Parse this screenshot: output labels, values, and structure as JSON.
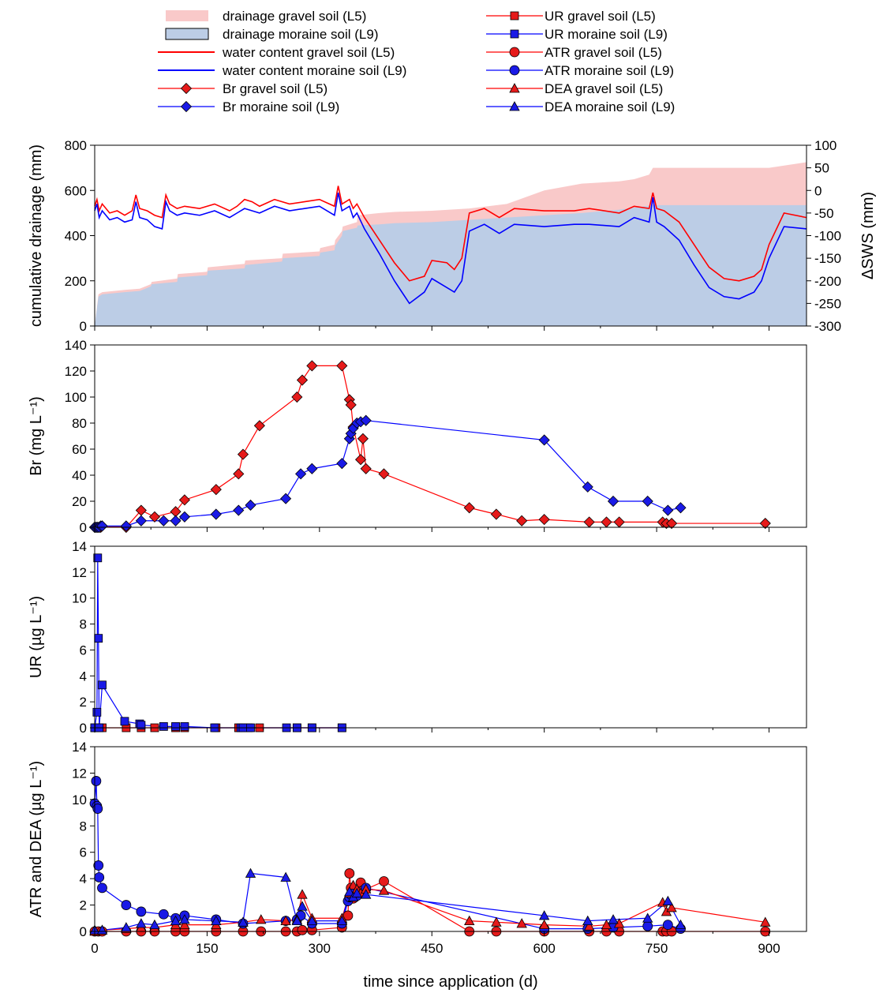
{
  "colors": {
    "gravel": "#ff0000",
    "moraine": "#0000ff",
    "gravel_fill": "#f9c9c9",
    "moraine_fill": "#bccde6",
    "gravel_marker": "#e61a1a",
    "moraine_marker": "#1a1ae6"
  },
  "legend": {
    "left": [
      {
        "label": "drainage gravel soil (L5)",
        "kind": "fill-gravel"
      },
      {
        "label": "drainage moraine soil (L9)",
        "kind": "fill-moraine"
      },
      {
        "label": "water content gravel soil (L5)",
        "kind": "line-gravel"
      },
      {
        "label": "water content moraine soil (L9)",
        "kind": "line-moraine"
      },
      {
        "label": "Br gravel soil (L5)",
        "kind": "diamond-gravel"
      },
      {
        "label": "Br moraine soil (L9)",
        "kind": "diamond-moraine"
      }
    ],
    "right": [
      {
        "label": "UR gravel soil (L5)",
        "kind": "square-gravel"
      },
      {
        "label": "UR moraine soil (L9)",
        "kind": "square-moraine"
      },
      {
        "label": "ATR gravel soil (L5)",
        "kind": "circle-gravel"
      },
      {
        "label": "ATR moraine soil (L9)",
        "kind": "circle-moraine"
      },
      {
        "label": "DEA gravel soil (L5)",
        "kind": "triangle-gravel"
      },
      {
        "label": "DEA moraine soil (L9)",
        "kind": "triangle-moraine"
      }
    ]
  },
  "chart_data": [
    {
      "type": "area",
      "ylabel": "cumulative drainage (mm)",
      "y2label": "ΔSWS (mm)",
      "ylim": [
        0,
        800
      ],
      "y2lim": [
        -300,
        100
      ],
      "yticks": [
        0,
        200,
        400,
        600,
        800
      ],
      "y2ticks": [
        -300,
        -250,
        -200,
        -150,
        -100,
        -50,
        0,
        50,
        100
      ],
      "series": [
        {
          "name": "drainage gravel soil (L5)",
          "type": "area",
          "x": [
            0,
            5,
            10,
            40,
            60,
            75,
            76,
            110,
            111,
            150,
            151,
            200,
            201,
            250,
            251,
            300,
            301,
            320,
            321,
            330,
            331,
            350,
            351,
            380,
            400,
            450,
            500,
            550,
            600,
            650,
            700,
            720,
            740,
            745,
            800,
            900,
            950
          ],
          "y": [
            0,
            140,
            150,
            160,
            165,
            185,
            195,
            210,
            230,
            240,
            260,
            275,
            290,
            300,
            320,
            330,
            345,
            360,
            380,
            420,
            440,
            460,
            490,
            500,
            505,
            510,
            520,
            540,
            600,
            630,
            640,
            650,
            670,
            700,
            700,
            700,
            725
          ]
        },
        {
          "name": "drainage moraine soil (L9)",
          "type": "area",
          "x": [
            0,
            5,
            10,
            40,
            60,
            75,
            76,
            110,
            111,
            150,
            151,
            200,
            201,
            250,
            251,
            300,
            301,
            320,
            321,
            330,
            331,
            350,
            351,
            380,
            400,
            450,
            500,
            550,
            600,
            650,
            700,
            745,
            800,
            950
          ],
          "y": [
            0,
            130,
            140,
            150,
            155,
            175,
            185,
            195,
            215,
            225,
            245,
            255,
            270,
            285,
            300,
            310,
            325,
            335,
            355,
            400,
            420,
            435,
            445,
            450,
            455,
            460,
            470,
            480,
            490,
            500,
            515,
            535,
            535,
            535
          ]
        },
        {
          "name": "water content gravel soil (L5)",
          "type": "line",
          "axis": "right",
          "x": [
            0,
            3,
            6,
            10,
            20,
            30,
            40,
            50,
            55,
            60,
            70,
            80,
            90,
            95,
            100,
            110,
            120,
            140,
            160,
            180,
            190,
            200,
            210,
            220,
            240,
            260,
            280,
            300,
            320,
            325,
            330,
            340,
            345,
            350,
            360,
            380,
            400,
            420,
            440,
            450,
            470,
            480,
            490,
            500,
            520,
            540,
            560,
            600,
            640,
            660,
            700,
            720,
            740,
            745,
            750,
            760,
            780,
            800,
            820,
            840,
            860,
            880,
            890,
            900,
            920,
            950
          ],
          "y": [
            -35,
            -20,
            -45,
            -30,
            -50,
            -45,
            -55,
            -45,
            -10,
            -40,
            -45,
            -55,
            -60,
            -10,
            -30,
            -40,
            -35,
            -40,
            -30,
            -45,
            -35,
            -20,
            -25,
            -35,
            -20,
            -30,
            -25,
            -20,
            -35,
            10,
            -30,
            -20,
            -40,
            -30,
            -60,
            -110,
            -160,
            -200,
            -190,
            -155,
            -160,
            -175,
            -150,
            -50,
            -40,
            -60,
            -40,
            -45,
            -45,
            -40,
            -50,
            -35,
            -40,
            -5,
            -40,
            -45,
            -70,
            -120,
            -170,
            -195,
            -200,
            -190,
            -175,
            -120,
            -50,
            -60
          ]
        },
        {
          "name": "water content moraine soil (L9)",
          "type": "line",
          "axis": "right",
          "x": [
            0,
            3,
            6,
            10,
            20,
            30,
            40,
            50,
            55,
            60,
            70,
            80,
            90,
            95,
            100,
            110,
            120,
            140,
            160,
            180,
            190,
            200,
            210,
            220,
            240,
            260,
            280,
            300,
            320,
            325,
            330,
            340,
            345,
            350,
            360,
            380,
            400,
            420,
            440,
            450,
            470,
            480,
            490,
            500,
            520,
            540,
            560,
            600,
            640,
            660,
            700,
            720,
            740,
            745,
            750,
            760,
            780,
            800,
            820,
            840,
            860,
            880,
            890,
            900,
            920,
            950
          ],
          "y": [
            -45,
            -30,
            -60,
            -45,
            -65,
            -60,
            -70,
            -65,
            -25,
            -60,
            -65,
            -80,
            -85,
            -25,
            -45,
            -55,
            -50,
            -55,
            -45,
            -60,
            -50,
            -40,
            -45,
            -50,
            -35,
            -45,
            -40,
            -35,
            -55,
            -5,
            -45,
            -35,
            -60,
            -50,
            -85,
            -140,
            -200,
            -250,
            -225,
            -195,
            -215,
            -225,
            -200,
            -90,
            -75,
            -95,
            -75,
            -80,
            -75,
            -75,
            -80,
            -60,
            -70,
            -15,
            -70,
            -80,
            -110,
            -165,
            -215,
            -235,
            -240,
            -225,
            -200,
            -150,
            -80,
            -85
          ]
        }
      ]
    },
    {
      "type": "line",
      "ylabel": "Br (mg L⁻¹)",
      "ylim": [
        0,
        140
      ],
      "yticks": [
        0,
        20,
        40,
        60,
        80,
        100,
        120,
        140
      ],
      "series": [
        {
          "name": "Br gravel soil (L5)",
          "marker": "diamond",
          "x": [
            0,
            2,
            4,
            6,
            8,
            10,
            42,
            62,
            80,
            108,
            120,
            162,
            192,
            198,
            220,
            270,
            277,
            290,
            330,
            340,
            342,
            345,
            355,
            358,
            362,
            386,
            500,
            536,
            570,
            600,
            660,
            683,
            700,
            758,
            763,
            770,
            895
          ],
          "y": [
            0,
            0,
            0,
            0,
            0,
            1,
            0,
            13,
            8,
            12,
            21,
            29,
            41,
            56,
            78,
            100,
            113,
            124,
            124,
            98,
            94,
            77,
            52,
            68,
            45,
            41,
            15,
            10,
            5,
            6,
            4,
            4,
            4,
            4,
            3,
            3,
            3
          ]
        },
        {
          "name": "Br moraine soil (L9)",
          "marker": "diamond",
          "x": [
            0,
            2,
            4,
            6,
            8,
            10,
            42,
            62,
            92,
            108,
            120,
            162,
            192,
            208,
            255,
            275,
            290,
            330,
            340,
            342,
            345,
            350,
            355,
            362,
            600,
            658,
            692,
            738,
            765,
            782
          ],
          "y": [
            0,
            0,
            0,
            0,
            1,
            1,
            1,
            5,
            5,
            5,
            8,
            10,
            13,
            17,
            22,
            41,
            45,
            49,
            68,
            72,
            76,
            80,
            81,
            82,
            67,
            31,
            20,
            20,
            13,
            15
          ]
        }
      ]
    },
    {
      "type": "line",
      "ylabel": "UR (µg L⁻¹)",
      "ylim": [
        0,
        14
      ],
      "yticks": [
        0,
        2,
        4,
        6,
        8,
        10,
        12,
        14
      ],
      "series": [
        {
          "name": "UR gravel soil (L5)",
          "marker": "square",
          "x": [
            0,
            10,
            42,
            62,
            80,
            108,
            120,
            162,
            192,
            205,
            220,
            270,
            290,
            330
          ],
          "y": [
            0,
            0,
            0,
            0,
            0,
            0,
            0,
            0,
            0,
            0,
            0,
            0,
            0,
            0
          ]
        },
        {
          "name": "UR moraine soil (L9)",
          "marker": "square",
          "x": [
            0,
            3,
            4,
            5,
            6,
            10,
            40,
            60,
            62,
            92,
            108,
            120,
            160,
            195,
            198,
            208,
            256,
            270,
            290,
            330
          ],
          "y": [
            0,
            1.2,
            13.1,
            6.9,
            0,
            3.3,
            0.5,
            0.3,
            0.2,
            0.1,
            0.1,
            0.1,
            0,
            0,
            0,
            0,
            0,
            0,
            0,
            0
          ]
        }
      ]
    },
    {
      "type": "line",
      "ylabel": "ATR and DEA (µg L⁻¹)",
      "xlabel": "time since application (d)",
      "ylim": [
        0,
        14
      ],
      "xlim": [
        0,
        950
      ],
      "yticks": [
        0,
        2,
        4,
        6,
        8,
        10,
        12,
        14
      ],
      "xticks": [
        0,
        150,
        300,
        450,
        600,
        750,
        900
      ],
      "series": [
        {
          "name": "ATR gravel soil (L5)",
          "marker": "circle",
          "x": [
            0,
            5,
            10,
            42,
            62,
            80,
            108,
            120,
            162,
            198,
            222,
            255,
            270,
            277,
            290,
            330,
            338,
            340,
            342,
            345,
            350,
            355,
            358,
            362,
            386,
            500,
            536,
            600,
            660,
            683,
            700,
            758,
            763,
            770,
            895
          ],
          "y": [
            0,
            0,
            0,
            0,
            0,
            0,
            0,
            0,
            0,
            0,
            0,
            0,
            0,
            0.1,
            0.1,
            0.3,
            1.2,
            4.4,
            3.3,
            2.5,
            3.0,
            3.7,
            3.1,
            3.2,
            3.8,
            0,
            0,
            0,
            0,
            0,
            0,
            0,
            0,
            0,
            0
          ]
        },
        {
          "name": "ATR moraine soil (L9)",
          "marker": "circle",
          "x": [
            0,
            2,
            3,
            4,
            5,
            6,
            10,
            42,
            62,
            92,
            108,
            120,
            162,
            198,
            255,
            270,
            275,
            290,
            330,
            338,
            340,
            342,
            345,
            350,
            362,
            600,
            658,
            692,
            738,
            765,
            782
          ],
          "y": [
            9.7,
            11.4,
            9.5,
            9.3,
            5.0,
            4.1,
            3.3,
            2.0,
            1.5,
            1.3,
            1.0,
            1.2,
            0.9,
            0.6,
            0.8,
            0.9,
            1.2,
            0.6,
            0.6,
            2.3,
            2.6,
            2.8,
            3.0,
            2.7,
            3.3,
            0.2,
            0.2,
            0.3,
            0.4,
            0.5,
            0.2
          ]
        },
        {
          "name": "DEA gravel soil (L5)",
          "marker": "triangle",
          "x": [
            0,
            10,
            42,
            62,
            80,
            108,
            120,
            162,
            198,
            222,
            255,
            270,
            277,
            290,
            330,
            340,
            345,
            350,
            355,
            362,
            386,
            500,
            536,
            570,
            600,
            660,
            683,
            700,
            758,
            763,
            770,
            895
          ],
          "y": [
            0,
            0.1,
            0.2,
            0.3,
            0.3,
            0.5,
            0.5,
            0.5,
            0.7,
            0.9,
            0.8,
            0.9,
            2.8,
            1.0,
            1.0,
            2.9,
            3.5,
            3.2,
            2.9,
            3.2,
            3.1,
            0.8,
            0.7,
            0.6,
            0.5,
            0.4,
            0.5,
            0.6,
            2.2,
            1.5,
            1.8,
            0.7
          ]
        },
        {
          "name": "DEA moraine soil (L9)",
          "marker": "triangle",
          "x": [
            0,
            10,
            42,
            62,
            80,
            108,
            120,
            162,
            198,
            208,
            255,
            270,
            277,
            290,
            330,
            340,
            345,
            350,
            362,
            600,
            658,
            692,
            738,
            765,
            782
          ],
          "y": [
            0.1,
            0.1,
            0.3,
            0.6,
            0.5,
            0.8,
            0.9,
            0.8,
            0.7,
            4.4,
            4.1,
            0.8,
            1.9,
            0.8,
            0.8,
            3.0,
            2.6,
            2.9,
            2.8,
            1.2,
            0.8,
            0.9,
            1.0,
            2.3,
            0.5
          ]
        }
      ]
    }
  ]
}
